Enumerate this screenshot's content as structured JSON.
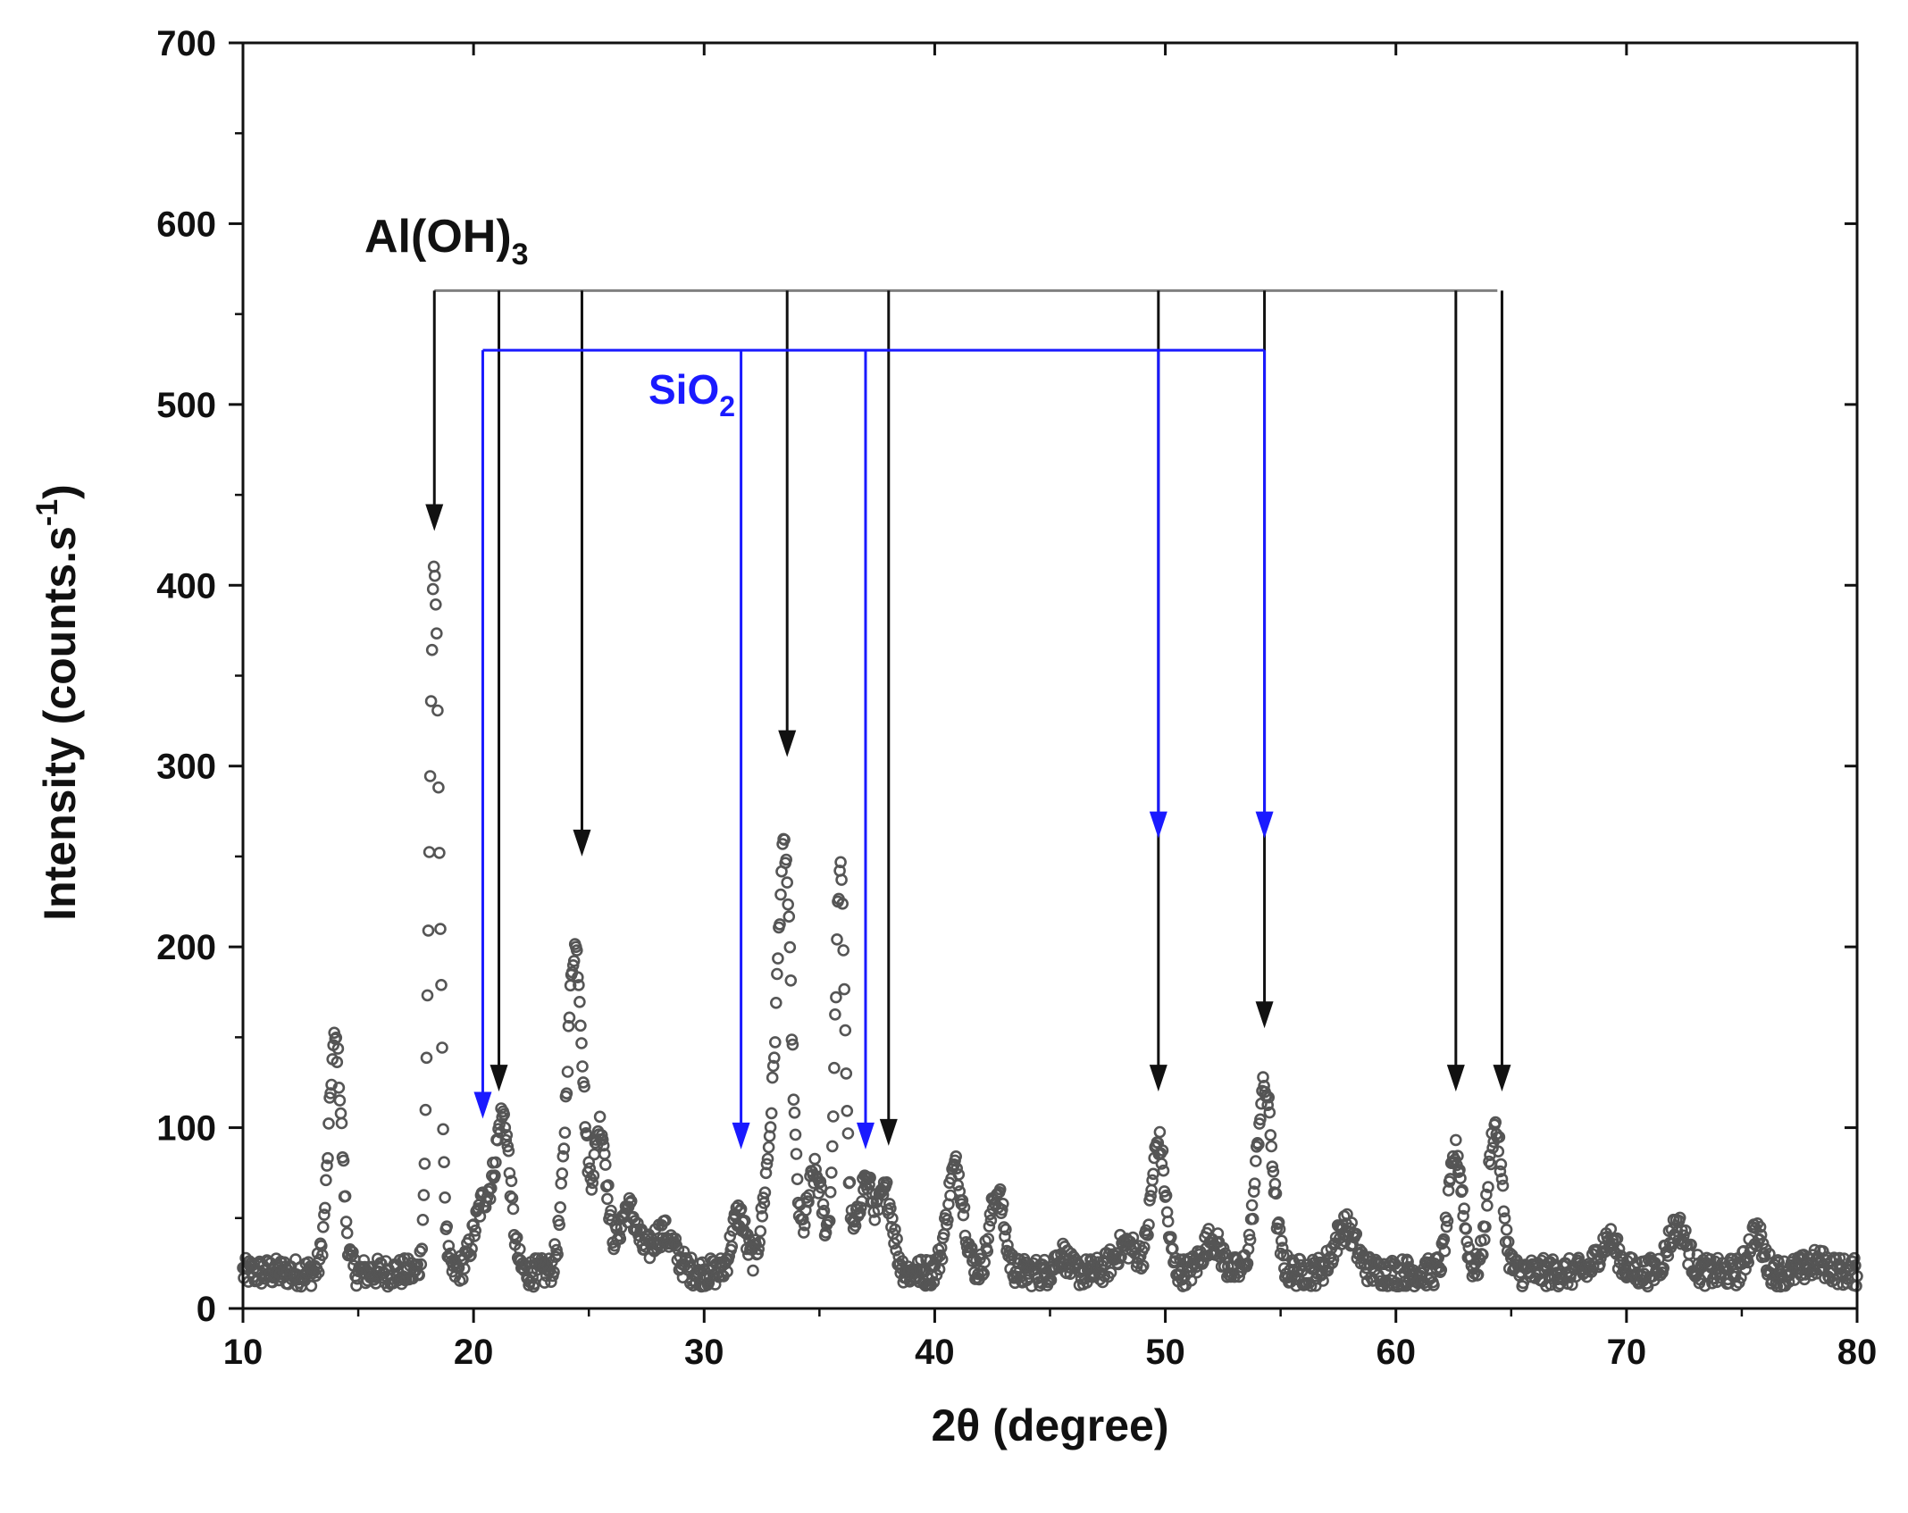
{
  "chart_data": {
    "type": "scatter",
    "title": "",
    "xlabel": "2θ (degree)",
    "ylabel": {
      "main": "Intensity (counts.s",
      "sup": "-1",
      "end": ")"
    },
    "xlim": [
      10,
      80
    ],
    "ylim": [
      0,
      700
    ],
    "x_ticks": [
      10,
      20,
      30,
      40,
      50,
      60,
      70,
      80
    ],
    "y_ticks": [
      0,
      100,
      200,
      300,
      400,
      500,
      600,
      700
    ],
    "grid": false,
    "legend": "none",
    "marker_color": "#555555",
    "series": [
      {
        "background": 20,
        "peaks": [
          {
            "x": 14.0,
            "y": 148,
            "w": 0.28
          },
          {
            "x": 18.3,
            "y": 405,
            "w": 0.22
          },
          {
            "x": 20.5,
            "y": 60,
            "w": 0.45
          },
          {
            "x": 21.3,
            "y": 98,
            "w": 0.3
          },
          {
            "x": 24.4,
            "y": 200,
            "w": 0.35
          },
          {
            "x": 25.5,
            "y": 100,
            "w": 0.28
          },
          {
            "x": 26.7,
            "y": 55,
            "w": 0.4
          },
          {
            "x": 28.2,
            "y": 42,
            "w": 0.5
          },
          {
            "x": 31.5,
            "y": 52,
            "w": 0.3
          },
          {
            "x": 32.9,
            "y": 78,
            "w": 0.35
          },
          {
            "x": 33.5,
            "y": 240,
            "w": 0.3
          },
          {
            "x": 34.8,
            "y": 75,
            "w": 0.35
          },
          {
            "x": 35.9,
            "y": 240,
            "w": 0.22
          },
          {
            "x": 37.0,
            "y": 70,
            "w": 0.35
          },
          {
            "x": 37.9,
            "y": 62,
            "w": 0.3
          },
          {
            "x": 40.9,
            "y": 78,
            "w": 0.35
          },
          {
            "x": 42.7,
            "y": 64,
            "w": 0.3
          },
          {
            "x": 45.5,
            "y": 30,
            "w": 0.25
          },
          {
            "x": 48.3,
            "y": 35,
            "w": 0.5
          },
          {
            "x": 49.7,
            "y": 92,
            "w": 0.3
          },
          {
            "x": 52.0,
            "y": 38,
            "w": 0.4
          },
          {
            "x": 54.3,
            "y": 122,
            "w": 0.35
          },
          {
            "x": 57.8,
            "y": 45,
            "w": 0.45
          },
          {
            "x": 62.6,
            "y": 86,
            "w": 0.3
          },
          {
            "x": 64.3,
            "y": 100,
            "w": 0.3
          },
          {
            "x": 69.2,
            "y": 38,
            "w": 0.4
          },
          {
            "x": 72.2,
            "y": 45,
            "w": 0.4
          },
          {
            "x": 75.6,
            "y": 42,
            "w": 0.3
          },
          {
            "x": 78.3,
            "y": 25,
            "w": 0.5
          }
        ]
      }
    ],
    "annotations": {
      "aloh3": {
        "label": "Al(OH)",
        "sub": "3",
        "color": "#111111",
        "bar_color": "#808080",
        "bar_y": 563,
        "bar_x": [
          18.3,
          64.4
        ],
        "peaks": [
          {
            "x": 18.3,
            "arrow_y": 430
          },
          {
            "x": 21.1,
            "arrow_y": 120
          },
          {
            "x": 24.7,
            "arrow_y": 250
          },
          {
            "x": 33.6,
            "arrow_y": 305
          },
          {
            "x": 38.0,
            "arrow_y": 90
          },
          {
            "x": 49.7,
            "arrow_y": 120
          },
          {
            "x": 54.3,
            "arrow_y": 155
          },
          {
            "x": 62.6,
            "arrow_y": 120
          },
          {
            "x": 64.6,
            "arrow_y": 120
          }
        ]
      },
      "sio2": {
        "label": "SiO",
        "sub": "2",
        "color": "#1a1aff",
        "bar_y": 530,
        "bar_x": [
          20.4,
          54.3
        ],
        "peaks": [
          {
            "x": 20.4,
            "arrow_y": 105
          },
          {
            "x": 31.6,
            "arrow_y": 88
          },
          {
            "x": 37.0,
            "arrow_y": 88
          },
          {
            "x": 49.7,
            "arrow_y": 260
          },
          {
            "x": 54.3,
            "arrow_y": 260
          }
        ]
      }
    }
  }
}
